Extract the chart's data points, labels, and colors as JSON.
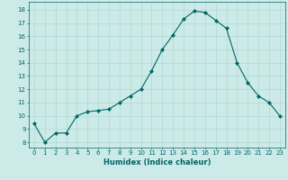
{
  "x": [
    0,
    1,
    2,
    3,
    4,
    5,
    6,
    7,
    8,
    9,
    10,
    11,
    12,
    13,
    14,
    15,
    16,
    17,
    18,
    19,
    20,
    21,
    22,
    23
  ],
  "y": [
    9.4,
    8.0,
    8.7,
    8.7,
    10.0,
    10.3,
    10.4,
    10.5,
    11.0,
    11.5,
    12.0,
    13.4,
    15.0,
    16.1,
    17.3,
    17.9,
    17.8,
    17.2,
    16.6,
    14.0,
    12.5,
    11.5,
    11.0,
    10.0
  ],
  "line_color": "#006666",
  "marker": "D",
  "marker_size": 2,
  "bg_color": "#cceae8",
  "grid_color": "#b0d8d5",
  "xlabel": "Humidex (Indice chaleur)",
  "ylabel_ticks": [
    8,
    9,
    10,
    11,
    12,
    13,
    14,
    15,
    16,
    17,
    18
  ],
  "ylim": [
    7.6,
    18.6
  ],
  "xlim": [
    -0.5,
    23.5
  ],
  "tick_fontsize": 5.0,
  "xlabel_fontsize": 6.0
}
